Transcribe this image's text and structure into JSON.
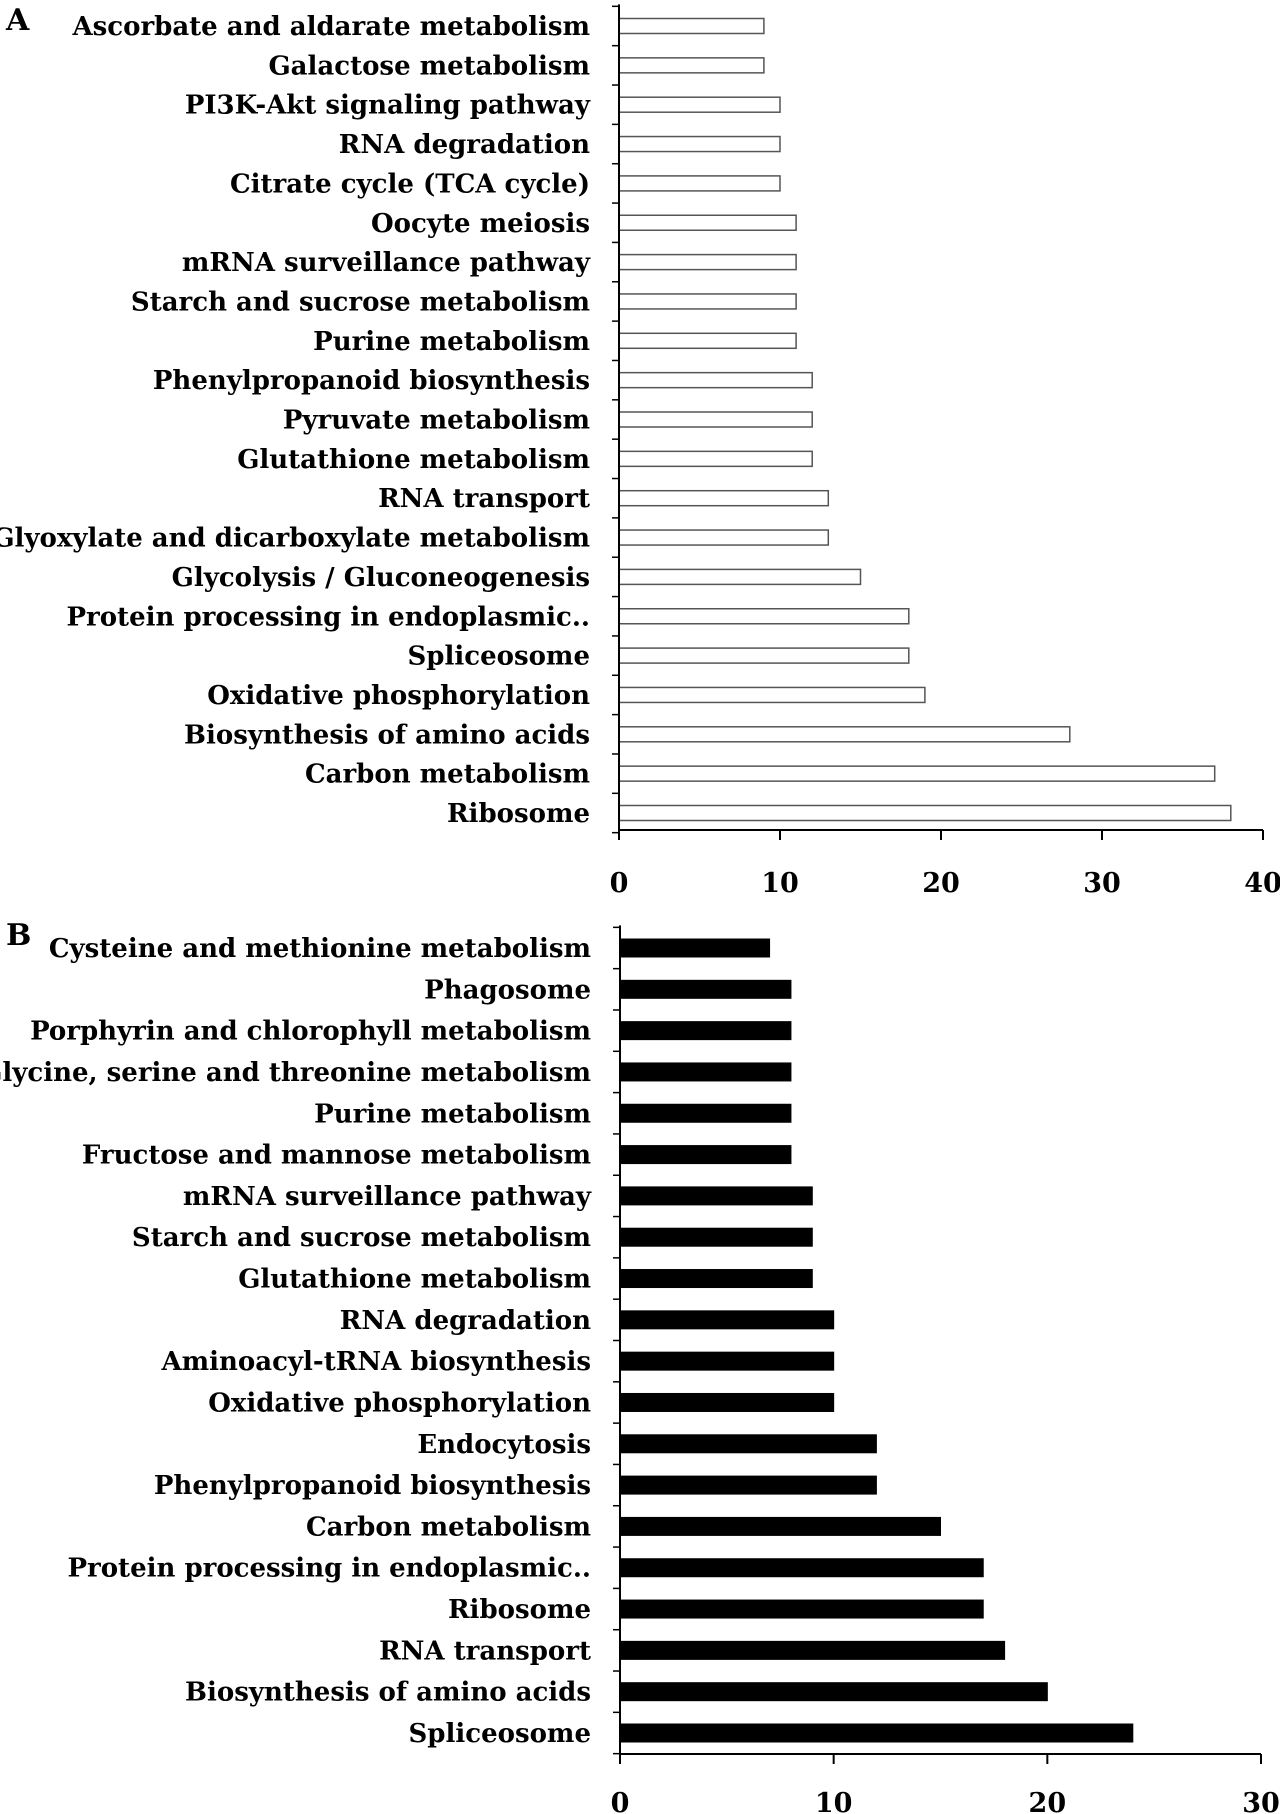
{
  "chart_data": [
    {
      "panel": "A",
      "type": "bar",
      "orientation": "horizontal",
      "bar_style": "outline",
      "categories": [
        "Ascorbate and aldarate metabolism",
        "Galactose metabolism",
        "PI3K-Akt signaling pathway",
        "RNA degradation",
        "Citrate cycle (TCA cycle)",
        "Oocyte meiosis",
        "mRNA surveillance pathway",
        "Starch and sucrose metabolism",
        "Purine metabolism",
        "Phenylpropanoid biosynthesis",
        "Pyruvate metabolism",
        "Glutathione metabolism",
        "RNA transport",
        "Glyoxylate and dicarboxylate metabolism",
        "Glycolysis / Gluconeogenesis",
        "Protein processing in endoplasmic..",
        "Spliceosome",
        "Oxidative phosphorylation",
        "Biosynthesis of amino acids",
        "Carbon metabolism",
        "Ribosome"
      ],
      "values": [
        9,
        9,
        10,
        10,
        10,
        11,
        11,
        11,
        11,
        12,
        12,
        12,
        13,
        13,
        15,
        18,
        18,
        19,
        28,
        37,
        38
      ],
      "xlim": [
        0,
        40
      ],
      "xticks": [
        "0",
        "10",
        "20",
        "30",
        "40"
      ],
      "title": "",
      "xlabel": "",
      "ylabel": ""
    },
    {
      "panel": "B",
      "type": "bar",
      "orientation": "horizontal",
      "bar_style": "filled",
      "categories": [
        "Cysteine and methionine metabolism",
        "Phagosome",
        "Porphyrin and chlorophyll metabolism",
        "Glycine, serine and threonine metabolism",
        "Purine metabolism",
        "Fructose and mannose metabolism",
        "mRNA surveillance pathway",
        "Starch and sucrose metabolism",
        "Glutathione metabolism",
        "RNA degradation",
        "Aminoacyl-tRNA biosynthesis",
        "Oxidative phosphorylation",
        "Endocytosis",
        "Phenylpropanoid biosynthesis",
        "Carbon metabolism",
        "Protein processing in endoplasmic..",
        "Ribosome",
        "RNA transport",
        "Biosynthesis of amino acids",
        "Spliceosome"
      ],
      "values": [
        7,
        8,
        8,
        8,
        8,
        8,
        9,
        9,
        9,
        10,
        10,
        10,
        12,
        12,
        15,
        17,
        17,
        18,
        20,
        24
      ],
      "xlim": [
        0,
        30
      ],
      "xticks": [
        "0",
        "10",
        "20",
        "30"
      ],
      "title": "",
      "xlabel": "",
      "ylabel": ""
    }
  ]
}
